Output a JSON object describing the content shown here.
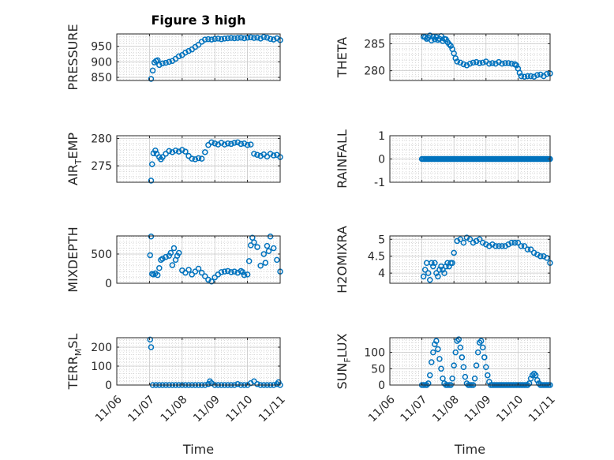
{
  "chart_data": [
    {
      "id": "pressure",
      "type": "scatter",
      "title": "Figure 3 high",
      "ylabel": "PRESSURE",
      "xlabel": "",
      "xlim": [
        0,
        5
      ],
      "ylim": [
        840,
        990
      ],
      "yticks": [
        850,
        900,
        950
      ],
      "x": [
        1.05,
        1.1,
        1.15,
        1.2,
        1.25,
        1.3,
        1.4,
        1.5,
        1.6,
        1.7,
        1.8,
        1.9,
        2.0,
        2.1,
        2.2,
        2.3,
        2.4,
        2.5,
        2.6,
        2.7,
        2.8,
        2.9,
        3.0,
        3.1,
        3.2,
        3.3,
        3.4,
        3.5,
        3.6,
        3.7,
        3.8,
        3.9,
        4.0,
        4.1,
        4.2,
        4.3,
        4.4,
        4.5,
        4.6,
        4.7,
        4.8,
        4.9,
        5.0
      ],
      "y": [
        845,
        872,
        898,
        903,
        905,
        890,
        895,
        897,
        900,
        903,
        910,
        918,
        922,
        930,
        935,
        940,
        948,
        955,
        965,
        972,
        973,
        972,
        974,
        975,
        973,
        975,
        976,
        977,
        976,
        977,
        978,
        976,
        978,
        979,
        977,
        978,
        975,
        980,
        978,
        974,
        972,
        976,
        970
      ]
    },
    {
      "id": "theta",
      "type": "scatter",
      "title": "",
      "ylabel": "THETA",
      "xlabel": "",
      "xlim": [
        0,
        5
      ],
      "ylim": [
        278.2,
        286.8
      ],
      "yticks": [
        280,
        285
      ],
      "x": [
        1.05,
        1.1,
        1.15,
        1.2,
        1.25,
        1.3,
        1.35,
        1.4,
        1.45,
        1.5,
        1.55,
        1.6,
        1.65,
        1.7,
        1.75,
        1.8,
        1.85,
        1.9,
        1.95,
        2.0,
        2.05,
        2.1,
        2.2,
        2.3,
        2.4,
        2.5,
        2.6,
        2.7,
        2.8,
        2.9,
        3.0,
        3.1,
        3.2,
        3.3,
        3.4,
        3.5,
        3.6,
        3.7,
        3.8,
        3.9,
        3.95,
        4.0,
        4.05,
        4.1,
        4.2,
        4.3,
        4.4,
        4.5,
        4.6,
        4.7,
        4.8,
        4.9,
        5.0
      ],
      "y": [
        286.3,
        286.2,
        285.9,
        286.1,
        286.5,
        285.6,
        286.3,
        285.8,
        286.2,
        285.7,
        285.9,
        286.4,
        285.5,
        285.9,
        285.8,
        285.3,
        284.9,
        284.6,
        284.0,
        283.2,
        282.3,
        281.7,
        281.5,
        281.2,
        281.0,
        281.3,
        281.5,
        281.6,
        281.4,
        281.5,
        281.7,
        281.3,
        281.4,
        281.3,
        281.6,
        281.3,
        281.4,
        281.4,
        281.3,
        281.2,
        281.0,
        280.4,
        279.6,
        279.0,
        278.9,
        279.0,
        279.0,
        278.9,
        279.2,
        279.3,
        279.0,
        279.4,
        279.5
      ]
    },
    {
      "id": "air_temp",
      "type": "scatter",
      "title": "",
      "ylabel": "AIR",
      "ylabel_sub": "T",
      "ylabel_rest": "EMP",
      "xlabel": "",
      "xlim": [
        0,
        5
      ],
      "ylim": [
        272,
        280.5
      ],
      "yticks": [
        275,
        280
      ],
      "x": [
        1.05,
        1.08,
        1.12,
        1.18,
        1.22,
        1.3,
        1.35,
        1.4,
        1.5,
        1.6,
        1.7,
        1.8,
        1.9,
        2.0,
        2.1,
        2.2,
        2.3,
        2.4,
        2.5,
        2.6,
        2.7,
        2.8,
        2.9,
        3.0,
        3.1,
        3.2,
        3.3,
        3.4,
        3.5,
        3.6,
        3.7,
        3.8,
        3.9,
        4.0,
        4.1,
        4.2,
        4.3,
        4.4,
        4.5,
        4.6,
        4.7,
        4.8,
        4.9,
        5.0
      ],
      "y": [
        272.3,
        275.3,
        277.3,
        277.8,
        277.2,
        276.6,
        276.2,
        276.6,
        277.2,
        277.7,
        277.5,
        277.8,
        277.6,
        277.9,
        277.6,
        276.8,
        276.3,
        276.2,
        276.4,
        276.3,
        277.5,
        278.8,
        279.3,
        279.1,
        278.9,
        279.2,
        278.9,
        279.1,
        279.0,
        279.2,
        279.3,
        279.0,
        279.1,
        278.8,
        278.9,
        277.2,
        277.0,
        276.8,
        277.1,
        276.7,
        277.2,
        276.9,
        277.0,
        276.6
      ]
    },
    {
      "id": "rainfall",
      "type": "scatter",
      "title": "",
      "ylabel": "RAINFALL",
      "xlabel": "",
      "xlim": [
        0,
        5
      ],
      "ylim": [
        -1,
        1
      ],
      "yticks": [
        -1,
        0,
        1
      ],
      "x_start": 1.0,
      "x_end": 5.0,
      "x_step": 0.04,
      "constant_value": 0
    },
    {
      "id": "mixdepth",
      "type": "scatter",
      "title": "",
      "ylabel": "MIXDEPTH",
      "xlabel": "",
      "xlim": [
        0,
        5
      ],
      "ylim": [
        0,
        810
      ],
      "yticks": [
        0,
        500
      ],
      "x": [
        1.02,
        1.05,
        1.08,
        1.12,
        1.18,
        1.25,
        1.3,
        1.35,
        1.4,
        1.5,
        1.6,
        1.65,
        1.7,
        1.75,
        1.8,
        1.85,
        1.9,
        2.0,
        2.1,
        2.2,
        2.3,
        2.4,
        2.5,
        2.6,
        2.7,
        2.8,
        2.9,
        3.0,
        3.1,
        3.2,
        3.3,
        3.4,
        3.5,
        3.6,
        3.7,
        3.8,
        3.85,
        3.9,
        4.0,
        4.05,
        4.1,
        4.15,
        4.2,
        4.3,
        4.4,
        4.5,
        4.55,
        4.6,
        4.65,
        4.7,
        4.8,
        4.9,
        5.0
      ],
      "y": [
        480,
        800,
        160,
        150,
        170,
        140,
        260,
        400,
        420,
        450,
        470,
        520,
        310,
        600,
        400,
        470,
        520,
        220,
        180,
        230,
        150,
        200,
        250,
        180,
        120,
        60,
        30,
        100,
        150,
        190,
        200,
        210,
        190,
        200,
        180,
        210,
        190,
        140,
        150,
        380,
        650,
        780,
        700,
        620,
        300,
        500,
        350,
        640,
        550,
        800,
        600,
        400,
        200
      ]
    },
    {
      "id": "h2omixra",
      "type": "scatter",
      "title": "",
      "ylabel": "H2OMIXRA",
      "xlabel": "",
      "xlim": [
        0,
        5
      ],
      "ylim": [
        3.7,
        5.1
      ],
      "yticks": [
        4,
        4.5,
        5
      ],
      "x": [
        1.05,
        1.1,
        1.15,
        1.2,
        1.25,
        1.3,
        1.35,
        1.4,
        1.45,
        1.5,
        1.55,
        1.6,
        1.65,
        1.7,
        1.75,
        1.8,
        1.85,
        1.9,
        1.95,
        2.0,
        2.1,
        2.2,
        2.3,
        2.4,
        2.5,
        2.6,
        2.7,
        2.8,
        2.9,
        3.0,
        3.1,
        3.2,
        3.3,
        3.4,
        3.5,
        3.6,
        3.7,
        3.8,
        3.9,
        4.0,
        4.1,
        4.2,
        4.3,
        4.4,
        4.5,
        4.6,
        4.7,
        4.8,
        4.9,
        5.0
      ],
      "y": [
        3.9,
        4.1,
        4.3,
        4.0,
        3.8,
        4.3,
        4.2,
        4.3,
        4.0,
        3.9,
        4.1,
        4.2,
        4.1,
        4.0,
        4.2,
        4.3,
        4.2,
        4.3,
        4.3,
        4.6,
        4.95,
        5.0,
        4.9,
        5.05,
        5.0,
        4.9,
        4.95,
        5.0,
        4.9,
        4.85,
        4.8,
        4.85,
        4.8,
        4.8,
        4.8,
        4.8,
        4.85,
        4.9,
        4.9,
        4.9,
        4.8,
        4.8,
        4.7,
        4.7,
        4.6,
        4.55,
        4.5,
        4.5,
        4.45,
        4.3
      ]
    },
    {
      "id": "terr_msl",
      "type": "scatter",
      "title": "",
      "ylabel": "TERR",
      "ylabel_sub": "M",
      "ylabel_rest": "SL",
      "xlabel": "Time",
      "xlim": [
        0,
        5
      ],
      "ylim": [
        0,
        250
      ],
      "yticks": [
        0,
        100,
        200
      ],
      "xticklabels": [
        "11/06",
        "11/07",
        "11/08",
        "11/09",
        "11/10",
        "11/11"
      ],
      "x": [
        1.02,
        1.05,
        1.1,
        1.2,
        1.3,
        1.4,
        1.5,
        1.6,
        1.7,
        1.8,
        1.9,
        2.0,
        2.1,
        2.2,
        2.3,
        2.4,
        2.5,
        2.6,
        2.7,
        2.8,
        2.85,
        2.9,
        3.0,
        3.1,
        3.2,
        3.3,
        3.4,
        3.5,
        3.6,
        3.7,
        3.8,
        3.9,
        4.0,
        4.1,
        4.2,
        4.3,
        4.4,
        4.5,
        4.6,
        4.7,
        4.8,
        4.9,
        4.95,
        5.0
      ],
      "y": [
        240,
        200,
        0,
        0,
        0,
        0,
        0,
        0,
        0,
        0,
        0,
        0,
        0,
        0,
        0,
        0,
        0,
        0,
        0,
        5,
        20,
        10,
        0,
        0,
        0,
        0,
        0,
        0,
        0,
        5,
        0,
        0,
        0,
        10,
        20,
        5,
        0,
        0,
        0,
        0,
        0,
        5,
        15,
        0
      ]
    },
    {
      "id": "sun_flux",
      "type": "scatter",
      "title": "",
      "ylabel": "SUN",
      "ylabel_sub": "F",
      "ylabel_rest": "LUX",
      "xlabel": "Time",
      "xlim": [
        0,
        5
      ],
      "ylim": [
        0,
        145
      ],
      "yticks": [
        0,
        50,
        100
      ],
      "xticklabels": [
        "11/06",
        "11/07",
        "11/08",
        "11/09",
        "11/10",
        "11/11"
      ],
      "x": [
        1.0,
        1.05,
        1.1,
        1.15,
        1.2,
        1.25,
        1.3,
        1.35,
        1.4,
        1.45,
        1.5,
        1.55,
        1.6,
        1.65,
        1.7,
        1.75,
        1.8,
        1.85,
        1.9,
        1.95,
        2.0,
        2.05,
        2.1,
        2.15,
        2.2,
        2.25,
        2.3,
        2.35,
        2.4,
        2.45,
        2.5,
        2.55,
        2.6,
        2.65,
        2.7,
        2.75,
        2.8,
        2.85,
        2.9,
        2.95,
        3.0,
        3.05,
        3.1,
        3.15,
        3.2,
        3.25,
        3.3,
        3.35,
        3.4,
        3.45,
        3.5,
        3.55,
        3.6,
        3.65,
        3.7,
        3.75,
        3.8,
        3.85,
        3.9,
        3.95,
        4.0,
        4.05,
        4.1,
        4.15,
        4.2,
        4.25,
        4.3,
        4.35,
        4.4,
        4.45,
        4.5,
        4.55,
        4.6,
        4.65,
        4.7,
        4.75,
        4.8,
        4.85,
        4.9,
        4.95,
        5.0
      ],
      "y": [
        0,
        0,
        0,
        0,
        5,
        30,
        70,
        100,
        125,
        135,
        110,
        80,
        50,
        20,
        5,
        0,
        0,
        0,
        0,
        20,
        60,
        100,
        135,
        140,
        115,
        85,
        55,
        25,
        5,
        0,
        0,
        0,
        0,
        20,
        60,
        100,
        130,
        135,
        115,
        85,
        55,
        30,
        10,
        0,
        0,
        0,
        0,
        0,
        0,
        0,
        0,
        0,
        0,
        0,
        0,
        0,
        0,
        0,
        0,
        0,
        0,
        0,
        0,
        0,
        0,
        0,
        0,
        5,
        20,
        30,
        35,
        30,
        15,
        5,
        0,
        0,
        0,
        0,
        0,
        0,
        0
      ]
    }
  ]
}
